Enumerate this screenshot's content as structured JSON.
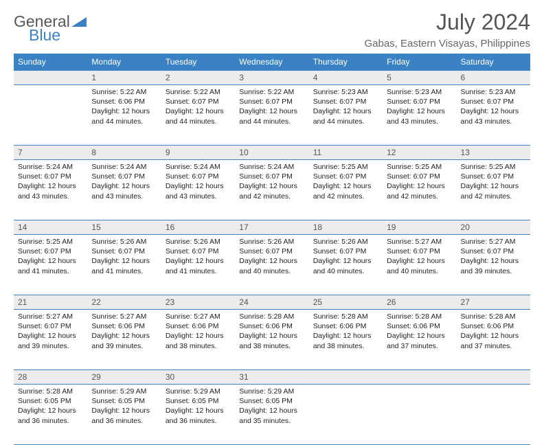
{
  "brand": {
    "word1": "General",
    "word2": "Blue"
  },
  "title": "July 2024",
  "location": "Gabas, Eastern Visayas, Philippines",
  "colors": {
    "header_bg": "#3b82c4",
    "header_fg": "#ffffff",
    "daynum_bg": "#ececec",
    "border": "#3b82c4",
    "text": "#222222"
  },
  "day_headers": [
    "Sunday",
    "Monday",
    "Tuesday",
    "Wednesday",
    "Thursday",
    "Friday",
    "Saturday"
  ],
  "weeks": [
    [
      {
        "num": "",
        "lines": []
      },
      {
        "num": "1",
        "lines": [
          "Sunrise: 5:22 AM",
          "Sunset: 6:06 PM",
          "Daylight: 12 hours",
          "and 44 minutes."
        ]
      },
      {
        "num": "2",
        "lines": [
          "Sunrise: 5:22 AM",
          "Sunset: 6:07 PM",
          "Daylight: 12 hours",
          "and 44 minutes."
        ]
      },
      {
        "num": "3",
        "lines": [
          "Sunrise: 5:22 AM",
          "Sunset: 6:07 PM",
          "Daylight: 12 hours",
          "and 44 minutes."
        ]
      },
      {
        "num": "4",
        "lines": [
          "Sunrise: 5:23 AM",
          "Sunset: 6:07 PM",
          "Daylight: 12 hours",
          "and 44 minutes."
        ]
      },
      {
        "num": "5",
        "lines": [
          "Sunrise: 5:23 AM",
          "Sunset: 6:07 PM",
          "Daylight: 12 hours",
          "and 43 minutes."
        ]
      },
      {
        "num": "6",
        "lines": [
          "Sunrise: 5:23 AM",
          "Sunset: 6:07 PM",
          "Daylight: 12 hours",
          "and 43 minutes."
        ]
      }
    ],
    [
      {
        "num": "7",
        "lines": [
          "Sunrise: 5:24 AM",
          "Sunset: 6:07 PM",
          "Daylight: 12 hours",
          "and 43 minutes."
        ]
      },
      {
        "num": "8",
        "lines": [
          "Sunrise: 5:24 AM",
          "Sunset: 6:07 PM",
          "Daylight: 12 hours",
          "and 43 minutes."
        ]
      },
      {
        "num": "9",
        "lines": [
          "Sunrise: 5:24 AM",
          "Sunset: 6:07 PM",
          "Daylight: 12 hours",
          "and 43 minutes."
        ]
      },
      {
        "num": "10",
        "lines": [
          "Sunrise: 5:24 AM",
          "Sunset: 6:07 PM",
          "Daylight: 12 hours",
          "and 42 minutes."
        ]
      },
      {
        "num": "11",
        "lines": [
          "Sunrise: 5:25 AM",
          "Sunset: 6:07 PM",
          "Daylight: 12 hours",
          "and 42 minutes."
        ]
      },
      {
        "num": "12",
        "lines": [
          "Sunrise: 5:25 AM",
          "Sunset: 6:07 PM",
          "Daylight: 12 hours",
          "and 42 minutes."
        ]
      },
      {
        "num": "13",
        "lines": [
          "Sunrise: 5:25 AM",
          "Sunset: 6:07 PM",
          "Daylight: 12 hours",
          "and 42 minutes."
        ]
      }
    ],
    [
      {
        "num": "14",
        "lines": [
          "Sunrise: 5:25 AM",
          "Sunset: 6:07 PM",
          "Daylight: 12 hours",
          "and 41 minutes."
        ]
      },
      {
        "num": "15",
        "lines": [
          "Sunrise: 5:26 AM",
          "Sunset: 6:07 PM",
          "Daylight: 12 hours",
          "and 41 minutes."
        ]
      },
      {
        "num": "16",
        "lines": [
          "Sunrise: 5:26 AM",
          "Sunset: 6:07 PM",
          "Daylight: 12 hours",
          "and 41 minutes."
        ]
      },
      {
        "num": "17",
        "lines": [
          "Sunrise: 5:26 AM",
          "Sunset: 6:07 PM",
          "Daylight: 12 hours",
          "and 40 minutes."
        ]
      },
      {
        "num": "18",
        "lines": [
          "Sunrise: 5:26 AM",
          "Sunset: 6:07 PM",
          "Daylight: 12 hours",
          "and 40 minutes."
        ]
      },
      {
        "num": "19",
        "lines": [
          "Sunrise: 5:27 AM",
          "Sunset: 6:07 PM",
          "Daylight: 12 hours",
          "and 40 minutes."
        ]
      },
      {
        "num": "20",
        "lines": [
          "Sunrise: 5:27 AM",
          "Sunset: 6:07 PM",
          "Daylight: 12 hours",
          "and 39 minutes."
        ]
      }
    ],
    [
      {
        "num": "21",
        "lines": [
          "Sunrise: 5:27 AM",
          "Sunset: 6:07 PM",
          "Daylight: 12 hours",
          "and 39 minutes."
        ]
      },
      {
        "num": "22",
        "lines": [
          "Sunrise: 5:27 AM",
          "Sunset: 6:06 PM",
          "Daylight: 12 hours",
          "and 39 minutes."
        ]
      },
      {
        "num": "23",
        "lines": [
          "Sunrise: 5:27 AM",
          "Sunset: 6:06 PM",
          "Daylight: 12 hours",
          "and 38 minutes."
        ]
      },
      {
        "num": "24",
        "lines": [
          "Sunrise: 5:28 AM",
          "Sunset: 6:06 PM",
          "Daylight: 12 hours",
          "and 38 minutes."
        ]
      },
      {
        "num": "25",
        "lines": [
          "Sunrise: 5:28 AM",
          "Sunset: 6:06 PM",
          "Daylight: 12 hours",
          "and 38 minutes."
        ]
      },
      {
        "num": "26",
        "lines": [
          "Sunrise: 5:28 AM",
          "Sunset: 6:06 PM",
          "Daylight: 12 hours",
          "and 37 minutes."
        ]
      },
      {
        "num": "27",
        "lines": [
          "Sunrise: 5:28 AM",
          "Sunset: 6:06 PM",
          "Daylight: 12 hours",
          "and 37 minutes."
        ]
      }
    ],
    [
      {
        "num": "28",
        "lines": [
          "Sunrise: 5:28 AM",
          "Sunset: 6:05 PM",
          "Daylight: 12 hours",
          "and 36 minutes."
        ]
      },
      {
        "num": "29",
        "lines": [
          "Sunrise: 5:29 AM",
          "Sunset: 6:05 PM",
          "Daylight: 12 hours",
          "and 36 minutes."
        ]
      },
      {
        "num": "30",
        "lines": [
          "Sunrise: 5:29 AM",
          "Sunset: 6:05 PM",
          "Daylight: 12 hours",
          "and 36 minutes."
        ]
      },
      {
        "num": "31",
        "lines": [
          "Sunrise: 5:29 AM",
          "Sunset: 6:05 PM",
          "Daylight: 12 hours",
          "and 35 minutes."
        ]
      },
      {
        "num": "",
        "lines": []
      },
      {
        "num": "",
        "lines": []
      },
      {
        "num": "",
        "lines": []
      }
    ]
  ]
}
